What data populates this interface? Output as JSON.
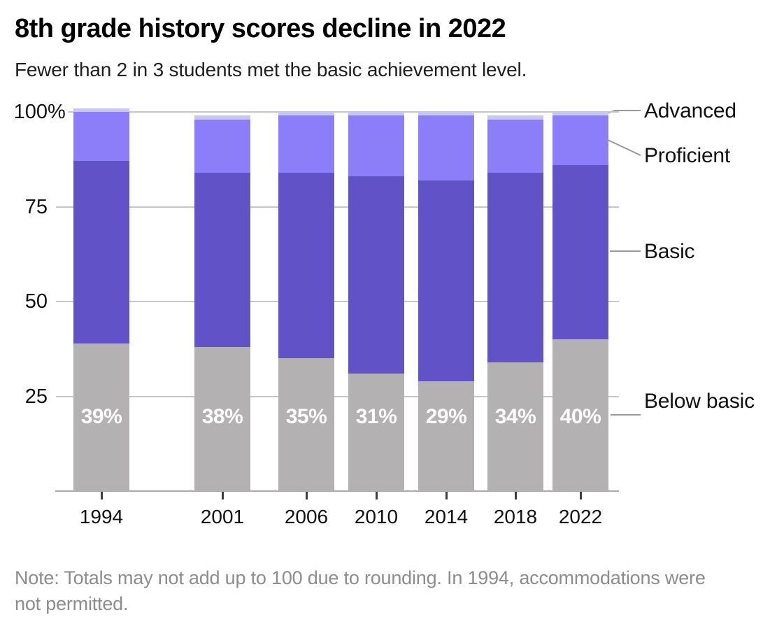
{
  "title": "8th grade history scores decline in 2022",
  "subtitle": "Fewer than 2 in 3 students met the basic achievement level.",
  "note": "Note: Totals may not add up to 100 due to rounding. In 1994, accommodations were not permitted.",
  "y_axis_ticks": [
    {
      "label": "100",
      "suffix": "%",
      "value": 100
    },
    {
      "label": "75",
      "suffix": "",
      "value": 75
    },
    {
      "label": "50",
      "suffix": "",
      "value": 50
    },
    {
      "label": "25",
      "suffix": "",
      "value": 25
    }
  ],
  "colors": {
    "below_basic": "#b3b1b1",
    "basic": "#6152c7",
    "proficient": "#8c7ef8",
    "advanced": "#c9c5f3",
    "gridline": "#c7c7c7",
    "axisline": "#ababab",
    "x_tick": "#3d3d3d",
    "text": "#111111",
    "bar_label_text": "#ffffff",
    "note_text": "#8d8d8d",
    "connector": "#999999"
  },
  "chart_data": {
    "type": "bar",
    "stacked": true,
    "title": "8th grade history scores decline in 2022",
    "subtitle": "Fewer than 2 in 3 students met the basic achievement level.",
    "categories": [
      "1994",
      "2001",
      "2006",
      "2010",
      "2014",
      "2018",
      "2022"
    ],
    "series": [
      {
        "name": "Below basic",
        "color": "#b3b1b1",
        "values": [
          39,
          38,
          35,
          31,
          29,
          34,
          40
        ]
      },
      {
        "name": "Basic",
        "color": "#6152c7",
        "values": [
          48,
          46,
          49,
          52,
          53,
          50,
          46
        ]
      },
      {
        "name": "Proficient",
        "color": "#8c7ef8",
        "values": [
          13,
          14,
          15,
          16,
          17,
          14,
          13
        ]
      },
      {
        "name": "Advanced",
        "color": "#c9c5f3",
        "values": [
          1,
          1,
          1,
          1,
          1,
          1,
          1
        ]
      }
    ],
    "bar_labels": {
      "series": "Below basic",
      "values": [
        "39%",
        "38%",
        "35%",
        "31%",
        "29%",
        "34%",
        "40%"
      ]
    },
    "legend_labels": [
      "Advanced",
      "Proficient",
      "Basic",
      "Below basic"
    ],
    "legend_position": "right",
    "xlabel": "",
    "ylabel": "",
    "ylim": [
      0,
      100
    ],
    "y_tick_values": [
      25,
      50,
      75,
      100
    ],
    "grid": true
  }
}
